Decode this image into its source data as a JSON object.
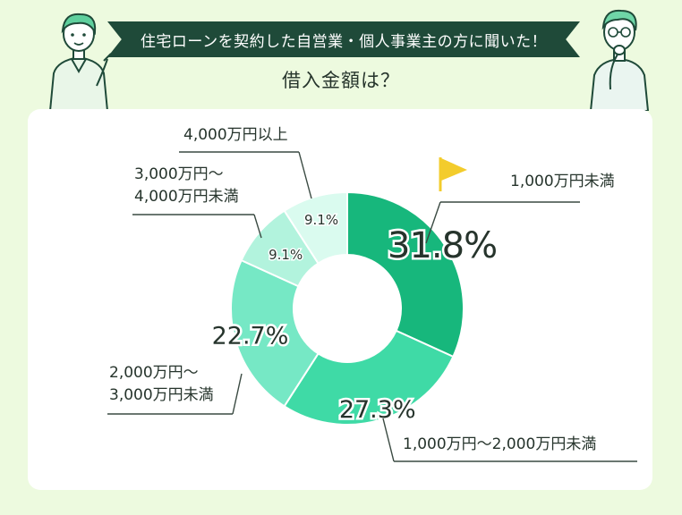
{
  "header": {
    "banner_text": "住宅ローンを契約した自営業・個人事業主の方に聞いた！",
    "question": "借入金額は？"
  },
  "colors": {
    "background": "#edfadf",
    "banner": "#1f4a39",
    "card": "#ffffff",
    "flag": "#f3cc2c",
    "leader_line": "#3a4a42"
  },
  "chart_data": {
    "type": "pie",
    "donut": true,
    "title": "借入金額は？",
    "categories": [
      "1,000万円未満",
      "1,000万円〜2,000万円未満",
      "2,000万円〜3,000万円未満",
      "3,000万円〜4,000万円未満",
      "4,000万円以上"
    ],
    "values": [
      31.8,
      27.3,
      22.7,
      9.1,
      9.1
    ],
    "value_labels": [
      "31.8%",
      "27.3%",
      "22.7%",
      "9.1%",
      "9.1%"
    ],
    "label_lines": [
      [
        "1,000万円未満"
      ],
      [
        "1,000万円〜2,000万円未満"
      ],
      [
        "2,000万円〜",
        "3,000万円未満"
      ],
      [
        "3,000万円〜",
        "4,000万円未満"
      ],
      [
        "4,000万円以上"
      ]
    ],
    "colors": [
      "#17b77c",
      "#3fdaa6",
      "#76e8c5",
      "#b2f3dd",
      "#dafbef"
    ],
    "start_angle_deg": 0,
    "direction": "clockwise",
    "highlight": "1,000万円未満"
  }
}
